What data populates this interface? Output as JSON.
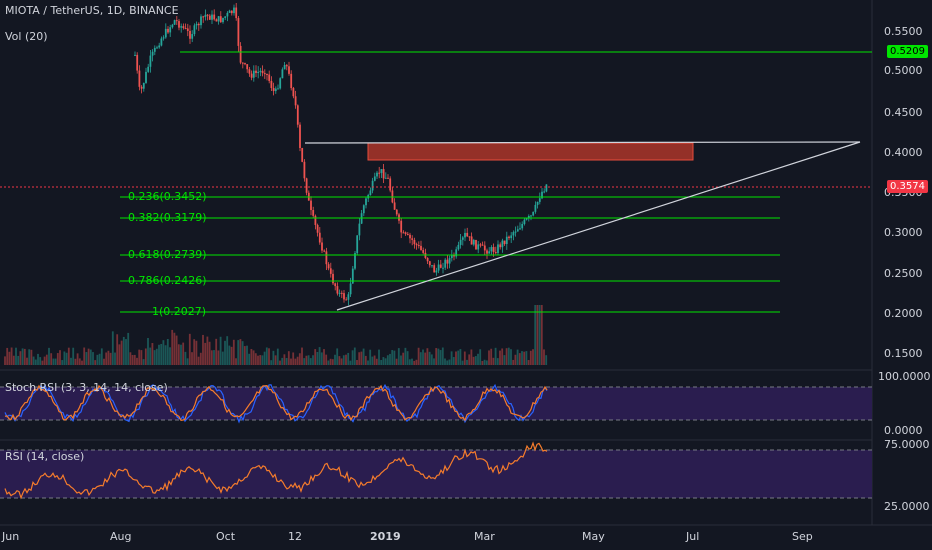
{
  "header": {
    "symbol_title": "MIOTA / TetherUS, 1D, BINANCE",
    "vol_label": "Vol (20)"
  },
  "price_axis": {
    "ticks": [
      "0.5500",
      "0.5000",
      "0.4500",
      "0.4000",
      "0.3500",
      "0.3000",
      "0.2500",
      "0.2000",
      "0.1500"
    ]
  },
  "price_tags": {
    "green": "0.5209",
    "red": "0.3574"
  },
  "fib": [
    {
      "label": "0.236(0.3452)"
    },
    {
      "label": "0.382(0.3179)"
    },
    {
      "label": "0.618(0.2739)"
    },
    {
      "label": "0.786(0.2426)"
    },
    {
      "label": "1(0.2027)"
    }
  ],
  "stoch": {
    "label": "Stoch RSI (3, 3, 14, 14, close)",
    "ticks": [
      "100.0000",
      "0.0000"
    ]
  },
  "rsi": {
    "label": "RSI (14, close)",
    "ticks": [
      "75.0000",
      "25.0000"
    ]
  },
  "time_axis": {
    "ticks": [
      "Jun",
      "Aug",
      "Oct",
      "12",
      "2019",
      "Mar",
      "May",
      "Jul",
      "Sep"
    ]
  },
  "colors": {
    "background": "#131722",
    "up": "#26a69a",
    "down": "#ef5350",
    "fib_line": "#00e600",
    "green_tag": "#00e600",
    "red_tag": "#f23645",
    "stoch_bg": "#2a1d4f",
    "rsi_bg": "#2a1d4f",
    "rsi_line": "#f57c2c",
    "stoch_k": "#2962ff",
    "stoch_d": "#f57c2c",
    "zone": "#c0392b"
  }
}
